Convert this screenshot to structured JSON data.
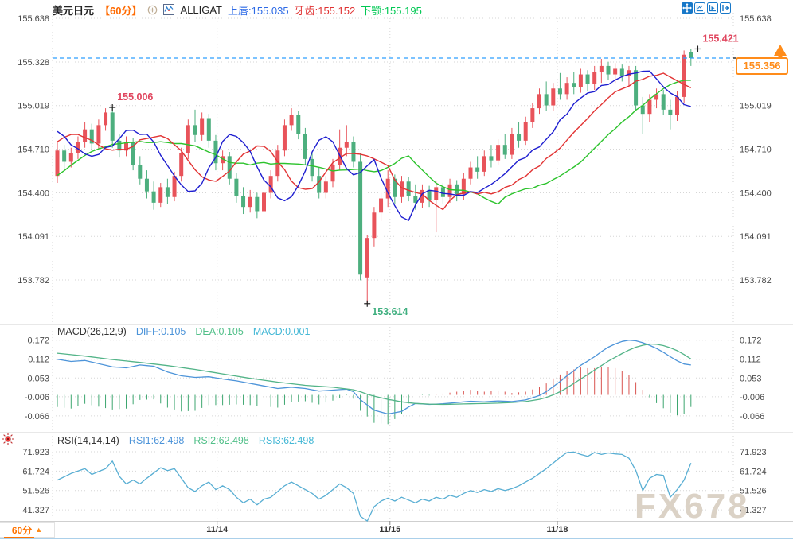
{
  "header": {
    "symbol": "美元日元",
    "period": "【60分】",
    "indicator_name": "ALLIGAT",
    "lips": "上唇:155.035",
    "teeth": "牙齿:155.152",
    "jaw": "下颚:155.195"
  },
  "toolbar": {
    "icons": [
      "move-crosshair",
      "zoom-axis",
      "zoom-play",
      "scroll-right"
    ]
  },
  "price_tag": {
    "value": "155.356"
  },
  "macd_header": {
    "title": "MACD(26,12,9)",
    "diff": "DIFF:0.105",
    "dea": "DEA:0.105",
    "macd": "MACD:0.001"
  },
  "rsi_header": {
    "title": "RSI(14,14,14)",
    "rsi1": "RSI1:62.498",
    "rsi2": "RSI2:62.498",
    "rsi3": "RSI3:62.498"
  },
  "bottom": {
    "period_tab": "60分",
    "tab_arrow": "▲"
  },
  "watermark": "FX678",
  "colors": {
    "candle_up": "#e8535a",
    "candle_down": "#4daf7e",
    "lips_line": "#1f1fd0",
    "teeth_line": "#e23333",
    "jaw_line": "#2cc32c",
    "diff_line": "#4d94d9",
    "dea_line": "#53b488",
    "hist_pos": "#d9534f",
    "hist_neg": "#3da66f",
    "rsi_line": "#58aed3",
    "current_price_line": "#2e9fff",
    "tag_orange": "#ff8c1a",
    "annotation_high": "#e0455e",
    "annotation_low": "#3faf7f"
  },
  "chart_data": {
    "type": "candlestick",
    "panels": [
      "price+alligator",
      "macd",
      "rsi"
    ],
    "current_price": 155.356,
    "axes": {
      "main": [
        155.638,
        155.328,
        155.019,
        154.71,
        154.4,
        154.091,
        153.782
      ],
      "macd": [
        0.172,
        0.112,
        0.053,
        -0.006,
        -0.066
      ],
      "rsi": [
        71.923,
        61.724,
        51.526,
        41.327
      ]
    },
    "date_ticks": [
      {
        "label": "11/14",
        "i": 23.2
      },
      {
        "label": "11/15",
        "i": 48.3
      },
      {
        "label": "11/18",
        "i": 72.6
      }
    ],
    "markers": [
      {
        "i": 8,
        "price": 155.006,
        "text": "155.006",
        "kind": "high"
      },
      {
        "i": 45,
        "price": 153.614,
        "text": "153.614",
        "kind": "low"
      },
      {
        "i": 93,
        "price": 155.421,
        "text": "155.421",
        "kind": "high"
      }
    ],
    "alligator_periods": {
      "lips": [
        5,
        3
      ],
      "teeth": [
        8,
        5
      ],
      "jaw": [
        13,
        8
      ]
    },
    "ma_warmup_closes": [
      154.5,
      154.45,
      154.4,
      154.38,
      154.35,
      154.4,
      154.45,
      154.42,
      154.48,
      154.55,
      154.6,
      154.7,
      154.78,
      154.85,
      154.88,
      154.9,
      154.84,
      154.8,
      154.76,
      154.7,
      154.6
    ],
    "candles": [
      [
        154.52,
        154.76,
        154.47,
        154.7
      ],
      [
        154.7,
        154.74,
        154.57,
        154.62
      ],
      [
        154.62,
        154.72,
        154.58,
        154.68
      ],
      [
        154.68,
        154.8,
        154.64,
        154.76
      ],
      [
        154.76,
        154.9,
        154.72,
        154.85
      ],
      [
        154.85,
        154.89,
        154.7,
        154.75
      ],
      [
        154.75,
        154.92,
        154.71,
        154.88
      ],
      [
        154.88,
        155.0,
        154.84,
        154.97
      ],
      [
        154.97,
        155.006,
        154.72,
        154.77
      ],
      [
        154.77,
        154.82,
        154.65,
        154.7
      ],
      [
        154.7,
        154.8,
        154.66,
        154.76
      ],
      [
        154.76,
        154.79,
        154.56,
        154.6
      ],
      [
        154.6,
        154.66,
        154.46,
        154.5
      ],
      [
        154.5,
        154.56,
        154.36,
        154.41
      ],
      [
        154.41,
        154.48,
        154.28,
        154.33
      ],
      [
        154.33,
        154.47,
        154.3,
        154.44
      ],
      [
        154.44,
        154.5,
        154.32,
        154.37
      ],
      [
        154.37,
        154.55,
        154.34,
        154.52
      ],
      [
        154.52,
        154.72,
        154.48,
        154.68
      ],
      [
        154.68,
        154.92,
        154.64,
        154.88
      ],
      [
        154.88,
        154.99,
        154.76,
        154.81
      ],
      [
        154.81,
        154.97,
        154.77,
        154.93
      ],
      [
        154.93,
        154.96,
        154.72,
        154.77
      ],
      [
        154.77,
        154.81,
        154.56,
        154.61
      ],
      [
        154.61,
        154.7,
        154.56,
        154.66
      ],
      [
        154.66,
        154.69,
        154.46,
        154.5
      ],
      [
        154.5,
        154.54,
        154.33,
        154.38
      ],
      [
        154.38,
        154.44,
        154.25,
        154.3
      ],
      [
        154.3,
        154.42,
        154.26,
        154.37
      ],
      [
        154.37,
        154.4,
        154.22,
        154.27
      ],
      [
        154.27,
        154.44,
        154.23,
        154.4
      ],
      [
        154.4,
        154.56,
        154.36,
        154.52
      ],
      [
        154.52,
        154.74,
        154.48,
        154.7
      ],
      [
        154.7,
        154.92,
        154.66,
        154.88
      ],
      [
        154.88,
        155.0,
        154.84,
        154.95
      ],
      [
        154.95,
        154.98,
        154.78,
        154.82
      ],
      [
        154.82,
        154.86,
        154.6,
        154.64
      ],
      [
        154.64,
        154.68,
        154.48,
        154.52
      ],
      [
        154.52,
        154.58,
        154.36,
        154.4
      ],
      [
        154.4,
        154.52,
        154.36,
        154.48
      ],
      [
        154.48,
        154.64,
        154.44,
        154.6
      ],
      [
        154.6,
        154.85,
        154.56,
        154.72
      ],
      [
        154.72,
        154.88,
        154.66,
        154.76
      ],
      [
        154.76,
        154.8,
        154.58,
        154.62
      ],
      [
        154.62,
        154.68,
        153.78,
        153.82
      ],
      [
        153.8,
        154.1,
        153.614,
        154.08
      ],
      [
        154.08,
        154.3,
        154.02,
        154.26
      ],
      [
        154.26,
        154.4,
        154.2,
        154.36
      ],
      [
        154.36,
        154.56,
        154.3,
        154.5
      ],
      [
        154.5,
        154.53,
        154.32,
        154.37
      ],
      [
        154.37,
        154.52,
        154.33,
        154.48
      ],
      [
        154.48,
        154.51,
        154.34,
        154.38
      ],
      [
        154.38,
        154.46,
        154.28,
        154.33
      ],
      [
        154.33,
        154.46,
        154.29,
        154.42
      ],
      [
        154.42,
        154.45,
        154.3,
        154.35
      ],
      [
        154.35,
        154.48,
        154.12,
        154.44
      ],
      [
        154.44,
        154.47,
        154.32,
        154.37
      ],
      [
        154.37,
        154.5,
        154.33,
        154.46
      ],
      [
        154.46,
        154.49,
        154.34,
        154.39
      ],
      [
        154.39,
        154.54,
        154.35,
        154.5
      ],
      [
        154.5,
        154.62,
        154.46,
        154.58
      ],
      [
        154.58,
        154.66,
        154.5,
        154.55
      ],
      [
        154.55,
        154.7,
        154.52,
        154.66
      ],
      [
        154.66,
        154.74,
        154.58,
        154.63
      ],
      [
        154.63,
        154.78,
        154.6,
        154.74
      ],
      [
        154.74,
        154.82,
        154.64,
        154.67
      ],
      [
        154.67,
        154.86,
        154.64,
        154.82
      ],
      [
        154.82,
        154.9,
        154.72,
        154.77
      ],
      [
        154.77,
        154.94,
        154.74,
        154.9
      ],
      [
        154.9,
        155.04,
        154.86,
        155.0
      ],
      [
        155.0,
        155.14,
        154.96,
        155.1
      ],
      [
        155.1,
        155.19,
        154.98,
        155.02
      ],
      [
        155.02,
        155.18,
        154.98,
        155.14
      ],
      [
        155.14,
        155.25,
        155.06,
        155.1
      ],
      [
        155.1,
        155.22,
        155.06,
        155.18
      ],
      [
        155.18,
        155.26,
        155.1,
        155.15
      ],
      [
        155.15,
        155.28,
        155.11,
        155.24
      ],
      [
        155.24,
        155.27,
        155.12,
        155.17
      ],
      [
        155.17,
        155.3,
        155.13,
        155.26
      ],
      [
        155.26,
        155.35,
        155.18,
        155.3
      ],
      [
        155.3,
        155.33,
        155.2,
        155.24
      ],
      [
        155.24,
        155.32,
        155.18,
        155.28
      ],
      [
        155.28,
        155.31,
        155.19,
        155.23
      ],
      [
        155.23,
        155.3,
        155.16,
        155.27
      ],
      [
        155.27,
        155.3,
        154.98,
        155.02
      ],
      [
        155.02,
        155.08,
        154.82,
        154.96
      ],
      [
        154.96,
        155.1,
        154.9,
        155.06
      ],
      [
        155.06,
        155.14,
        155.0,
        155.1
      ],
      [
        155.1,
        155.13,
        154.95,
        154.99
      ],
      [
        154.99,
        155.06,
        154.85,
        154.95
      ],
      [
        154.95,
        155.12,
        154.91,
        155.08
      ],
      [
        155.08,
        155.41,
        155.04,
        155.38
      ],
      [
        155.4,
        155.421,
        155.3,
        155.356
      ]
    ],
    "macd": {
      "diff_anchors": [
        [
          0,
          0.112
        ],
        [
          2,
          0.105
        ],
        [
          4,
          0.108
        ],
        [
          6,
          0.098
        ],
        [
          8,
          0.088
        ],
        [
          10,
          0.085
        ],
        [
          12,
          0.094
        ],
        [
          14,
          0.09
        ],
        [
          16,
          0.072
        ],
        [
          18,
          0.06
        ],
        [
          20,
          0.055
        ],
        [
          22,
          0.057
        ],
        [
          24,
          0.05
        ],
        [
          26,
          0.044
        ],
        [
          28,
          0.036
        ],
        [
          30,
          0.028
        ],
        [
          32,
          0.02
        ],
        [
          34,
          0.024
        ],
        [
          36,
          0.02
        ],
        [
          38,
          0.012
        ],
        [
          40,
          0.015
        ],
        [
          42,
          0.018
        ],
        [
          43,
          0.01
        ],
        [
          44,
          -0.015
        ],
        [
          45,
          -0.032
        ],
        [
          46,
          -0.048
        ],
        [
          48,
          -0.06
        ],
        [
          50,
          -0.052
        ],
        [
          51,
          -0.038
        ],
        [
          52,
          -0.027
        ],
        [
          54,
          -0.03
        ],
        [
          56,
          -0.028
        ],
        [
          58,
          -0.024
        ],
        [
          60,
          -0.02
        ],
        [
          62,
          -0.022
        ],
        [
          64,
          -0.019
        ],
        [
          66,
          -0.021
        ],
        [
          68,
          -0.016
        ],
        [
          70,
          -0.002
        ],
        [
          71,
          0.01
        ],
        [
          72,
          0.026
        ],
        [
          73,
          0.042
        ],
        [
          74,
          0.06
        ],
        [
          75,
          0.076
        ],
        [
          76,
          0.093
        ],
        [
          77,
          0.106
        ],
        [
          78,
          0.12
        ],
        [
          79,
          0.136
        ],
        [
          80,
          0.15
        ],
        [
          81,
          0.16
        ],
        [
          82,
          0.168
        ],
        [
          83,
          0.172
        ],
        [
          84,
          0.17
        ],
        [
          85,
          0.164
        ],
        [
          86,
          0.156
        ],
        [
          87,
          0.146
        ],
        [
          88,
          0.134
        ],
        [
          89,
          0.12
        ],
        [
          90,
          0.107
        ],
        [
          91,
          0.097
        ],
        [
          92,
          0.094
        ],
        [
          93,
          0.105
        ]
      ],
      "dea_anchors": [
        [
          0,
          0.131
        ],
        [
          4,
          0.122
        ],
        [
          8,
          0.111
        ],
        [
          12,
          0.102
        ],
        [
          16,
          0.092
        ],
        [
          20,
          0.08
        ],
        [
          24,
          0.066
        ],
        [
          28,
          0.052
        ],
        [
          32,
          0.04
        ],
        [
          36,
          0.03
        ],
        [
          40,
          0.024
        ],
        [
          43,
          0.016
        ],
        [
          44,
          0.01
        ],
        [
          45,
          0.002
        ],
        [
          46,
          -0.004
        ],
        [
          48,
          -0.014
        ],
        [
          50,
          -0.022
        ],
        [
          52,
          -0.027
        ],
        [
          54,
          -0.029
        ],
        [
          56,
          -0.03
        ],
        [
          58,
          -0.029
        ],
        [
          60,
          -0.028
        ],
        [
          62,
          -0.027
        ],
        [
          64,
          -0.026
        ],
        [
          66,
          -0.024
        ],
        [
          68,
          -0.021
        ],
        [
          70,
          -0.014
        ],
        [
          71,
          -0.008
        ],
        [
          72,
          0.0
        ],
        [
          73,
          0.01
        ],
        [
          74,
          0.022
        ],
        [
          75,
          0.036
        ],
        [
          76,
          0.05
        ],
        [
          77,
          0.064
        ],
        [
          78,
          0.078
        ],
        [
          79,
          0.092
        ],
        [
          80,
          0.106
        ],
        [
          81,
          0.118
        ],
        [
          82,
          0.13
        ],
        [
          83,
          0.141
        ],
        [
          84,
          0.15
        ],
        [
          85,
          0.156
        ],
        [
          86,
          0.16
        ],
        [
          87,
          0.159
        ],
        [
          88,
          0.155
        ],
        [
          89,
          0.148
        ],
        [
          90,
          0.139
        ],
        [
          91,
          0.127
        ],
        [
          92,
          0.113
        ],
        [
          93,
          0.1045
        ]
      ]
    },
    "rsi_anchors": [
      [
        0,
        57
      ],
      [
        2,
        60.5
      ],
      [
        4,
        63
      ],
      [
        5,
        60
      ],
      [
        7,
        63
      ],
      [
        8,
        67
      ],
      [
        9,
        59
      ],
      [
        10,
        55
      ],
      [
        11,
        57
      ],
      [
        12,
        55
      ],
      [
        13,
        58
      ],
      [
        15,
        63.5
      ],
      [
        16,
        62
      ],
      [
        17,
        63
      ],
      [
        18,
        58
      ],
      [
        19,
        53
      ],
      [
        20,
        51
      ],
      [
        21,
        54
      ],
      [
        22,
        56
      ],
      [
        23,
        52
      ],
      [
        24,
        54
      ],
      [
        25,
        52
      ],
      [
        26,
        48
      ],
      [
        27,
        45
      ],
      [
        28,
        47
      ],
      [
        29,
        44
      ],
      [
        30,
        47
      ],
      [
        31,
        48
      ],
      [
        32,
        51
      ],
      [
        33,
        54
      ],
      [
        34,
        56
      ],
      [
        35,
        54
      ],
      [
        36,
        52
      ],
      [
        37,
        50
      ],
      [
        38,
        47
      ],
      [
        39,
        49
      ],
      [
        40,
        52
      ],
      [
        41,
        55
      ],
      [
        42,
        53
      ],
      [
        43,
        50
      ],
      [
        44,
        38
      ],
      [
        45,
        35.5
      ],
      [
        46,
        43
      ],
      [
        47,
        46
      ],
      [
        48,
        47.5
      ],
      [
        49,
        46
      ],
      [
        50,
        48
      ],
      [
        51,
        46.5
      ],
      [
        52,
        45
      ],
      [
        53,
        47
      ],
      [
        54,
        46
      ],
      [
        55,
        48
      ],
      [
        56,
        47
      ],
      [
        57,
        49
      ],
      [
        58,
        48
      ],
      [
        59,
        50
      ],
      [
        60,
        51.5
      ],
      [
        61,
        50.5
      ],
      [
        62,
        52
      ],
      [
        63,
        51
      ],
      [
        64,
        52.5
      ],
      [
        65,
        51.5
      ],
      [
        66,
        52.5
      ],
      [
        67,
        54
      ],
      [
        68,
        56
      ],
      [
        69,
        58
      ],
      [
        70,
        60.5
      ],
      [
        71,
        63
      ],
      [
        72,
        66
      ],
      [
        73,
        69
      ],
      [
        74,
        71.5
      ],
      [
        75,
        71.8
      ],
      [
        76,
        70.5
      ],
      [
        77,
        69.5
      ],
      [
        78,
        71.5
      ],
      [
        79,
        70.5
      ],
      [
        80,
        71.3
      ],
      [
        81,
        70.8
      ],
      [
        82,
        70.5
      ],
      [
        83,
        68.5
      ],
      [
        84,
        62
      ],
      [
        85,
        51.5
      ],
      [
        86,
        58
      ],
      [
        87,
        60
      ],
      [
        88,
        59.5
      ],
      [
        89,
        48
      ],
      [
        90,
        52
      ],
      [
        91,
        57
      ],
      [
        92,
        66
      ],
      [
        93,
        62.5
      ]
    ]
  }
}
